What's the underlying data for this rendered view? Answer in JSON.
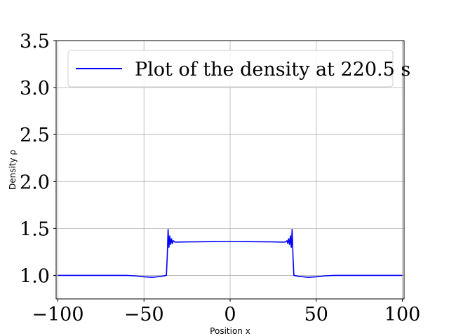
{
  "chart_data": {
    "type": "line",
    "title": "",
    "xlabel": "Position x",
    "ylabel": "Density ρ",
    "xlim": [
      -101,
      101
    ],
    "ylim": [
      0.75,
      3.5
    ],
    "grid": true,
    "legend_position": "top",
    "x_ticks": [
      -100,
      -50,
      0,
      50,
      100
    ],
    "x_tick_labels": [
      "−100",
      "−50",
      "0",
      "50",
      "100"
    ],
    "y_ticks": [
      1.0,
      1.5,
      2.0,
      2.5,
      3.0,
      3.5
    ],
    "y_tick_labels": [
      "1.0",
      "1.5",
      "2.0",
      "2.5",
      "3.0",
      "3.5"
    ],
    "series": [
      {
        "name": "Plot of the density at 220.5 s",
        "color": "#0000ff",
        "x": [
          -100,
          -90,
          -80,
          -70,
          -60,
          -55,
          -50,
          -45,
          -40,
          -37,
          -36.5,
          -36,
          -35.5,
          -35,
          -34.5,
          -34,
          -33.5,
          -33,
          -32,
          -30,
          -25,
          -20,
          -10,
          0,
          10,
          20,
          25,
          30,
          32,
          33,
          33.5,
          34,
          34.5,
          35,
          35.5,
          36,
          36.5,
          37,
          40,
          45,
          50,
          55,
          60,
          70,
          80,
          90,
          100
        ],
        "y": [
          1.0,
          1.0,
          1.0,
          1.0,
          1.0,
          0.995,
          0.985,
          0.98,
          0.99,
          1.0,
          1.2,
          1.49,
          1.3,
          1.42,
          1.33,
          1.39,
          1.34,
          1.37,
          1.355,
          1.355,
          1.357,
          1.358,
          1.36,
          1.361,
          1.36,
          1.358,
          1.357,
          1.355,
          1.355,
          1.37,
          1.34,
          1.39,
          1.33,
          1.42,
          1.3,
          1.49,
          1.2,
          1.0,
          0.99,
          0.98,
          0.985,
          0.995,
          1.0,
          1.0,
          1.0,
          1.0,
          1.0
        ]
      }
    ]
  }
}
